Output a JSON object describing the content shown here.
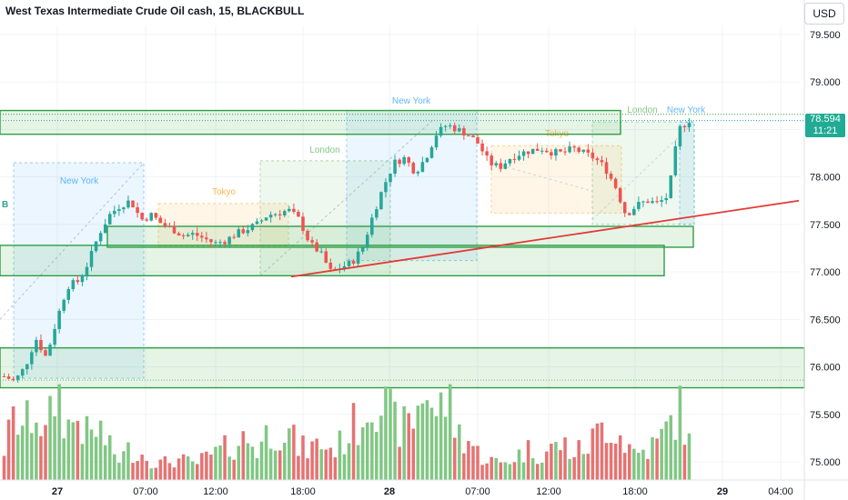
{
  "header": {
    "title": "West Texas Intermediate Crude Oil cash, 15, BLACKBULL",
    "currency": "USD"
  },
  "price_tag": {
    "price": "78.594",
    "countdown": "11:21",
    "color": "#22ab94"
  },
  "colors": {
    "up": "#26a69a",
    "down": "#ef5350",
    "vol_up": "#81c784",
    "vol_down": "#e57373",
    "zone": "#4caf50",
    "trendline": "#e53935"
  },
  "sessions": [
    {
      "label": "New York",
      "color": "#2196f3"
    },
    {
      "label": "Tokyo",
      "color": "#ff9800"
    },
    {
      "label": "London",
      "color": "#4caf50"
    },
    {
      "label": "New York",
      "color": "#2196f3"
    },
    {
      "label": "Tokyo",
      "color": "#ff9800"
    },
    {
      "label": "London",
      "color": "#4caf50"
    },
    {
      "label": "New York",
      "color": "#2196f3"
    }
  ],
  "edge_label": "B",
  "chart_data": {
    "type": "candlestick",
    "title": "West Texas Intermediate Crude Oil cash, 15, BLACKBULL",
    "ylim": [
      74.9,
      79.7
    ],
    "y_ticks": [
      "79.500",
      "79.000",
      "78.500",
      "78.000",
      "77.500",
      "77.000",
      "76.500",
      "76.000",
      "75.500",
      "75.000"
    ],
    "x_ticks": [
      "27",
      "07:00",
      "12:00",
      "18:00",
      "28",
      "07:00",
      "12:00",
      "18:00",
      "29",
      "04:00"
    ],
    "zones": [
      {
        "from": 78.45,
        "to": 78.7
      },
      {
        "from": 77.26,
        "to": 77.48
      },
      {
        "from": 76.96,
        "to": 77.28
      },
      {
        "from": 75.78,
        "to": 76.2
      }
    ],
    "trendline": {
      "from": 76.95,
      "to": 77.75
    },
    "last_price": 78.594,
    "close_path": [
      75.9,
      75.85,
      76.0,
      76.3,
      76.1,
      76.5,
      76.85,
      76.9,
      77.1,
      77.4,
      77.6,
      77.7,
      77.75,
      77.55,
      77.6,
      77.5,
      77.45,
      77.38,
      77.4,
      77.35,
      77.3,
      77.33,
      77.4,
      77.45,
      77.5,
      77.6,
      77.62,
      77.65,
      77.55,
      77.3,
      77.2,
      77.0,
      77.05,
      77.1,
      77.25,
      77.6,
      77.9,
      78.15,
      78.2,
      78.05,
      78.2,
      78.45,
      78.55,
      78.5,
      78.45,
      78.35,
      78.15,
      78.1,
      78.2,
      78.25,
      78.28,
      78.3,
      78.26,
      78.25,
      78.3,
      78.25,
      78.2,
      78.1,
      77.9,
      77.6,
      77.7,
      77.75,
      77.72,
      77.8,
      78.5,
      78.6
    ],
    "volume_path": [
      0.3,
      0.6,
      0.5,
      0.7,
      0.4,
      0.9,
      0.5,
      0.6,
      0.4,
      0.5,
      0.3,
      0.2,
      0.3,
      0.25,
      0.2,
      0.15,
      0.2,
      0.18,
      0.15,
      0.2,
      0.25,
      0.3,
      0.35,
      0.4,
      0.3,
      0.45,
      0.5,
      0.45,
      0.3,
      0.3,
      0.35,
      0.3,
      0.35,
      0.5,
      0.6,
      0.9,
      0.7,
      0.55,
      0.5,
      0.6,
      0.95,
      0.6,
      0.8,
      0.45,
      0.4,
      0.25,
      0.2,
      0.15,
      0.2,
      0.25,
      0.3,
      0.25,
      0.3,
      0.35,
      0.25,
      0.3,
      0.4,
      0.55,
      0.5,
      0.35,
      0.25,
      0.3,
      0.35,
      0.5,
      0.7,
      0.35
    ]
  }
}
